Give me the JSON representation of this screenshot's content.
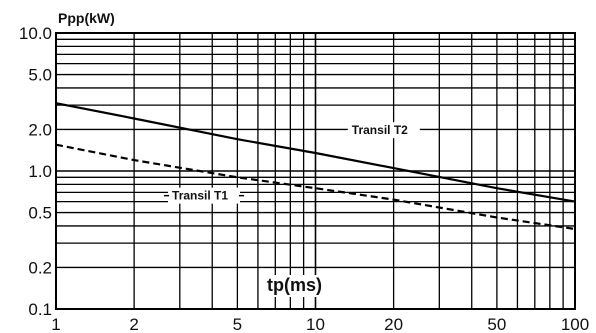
{
  "chart_data": {
    "type": "line",
    "title": "Ppp(kW)",
    "xlabel": "tp(ms)",
    "ylabel": "Ppp(kW)",
    "x_scale": "log",
    "y_scale": "log",
    "xlim": [
      1,
      100
    ],
    "ylim": [
      0.1,
      10
    ],
    "x_ticks": [
      1,
      2,
      5,
      10,
      20,
      50,
      100
    ],
    "x_tick_labels": [
      "1",
      "2",
      "5",
      "10",
      "20",
      "50",
      "100"
    ],
    "y_ticks": [
      0.1,
      0.2,
      0.5,
      1,
      2,
      5,
      10
    ],
    "y_tick_labels": [
      "0.1",
      "0.2",
      "0.5",
      "1.0",
      "2.0",
      "5.0",
      "10.0"
    ],
    "x_gridlines": [
      1,
      2,
      3,
      4,
      5,
      6,
      7,
      8,
      9,
      10,
      20,
      30,
      40,
      50,
      60,
      70,
      80,
      90,
      100
    ],
    "y_gridlines": [
      0.1,
      0.2,
      0.3,
      0.4,
      0.5,
      0.6,
      0.7,
      0.8,
      0.9,
      1,
      2,
      3,
      4,
      5,
      6,
      7,
      8,
      9,
      10
    ],
    "grid": true,
    "series": [
      {
        "name": "Transil T2",
        "line_style": "solid",
        "x": [
          1,
          2,
          5,
          10,
          20,
          50,
          100
        ],
        "y": [
          3.1,
          2.4,
          1.7,
          1.35,
          1.05,
          0.75,
          0.6
        ]
      },
      {
        "name": "Transil T1",
        "line_style": "dashed",
        "x": [
          1,
          2,
          5,
          10,
          20,
          50,
          100
        ],
        "y": [
          1.55,
          1.2,
          0.9,
          0.75,
          0.62,
          0.46,
          0.38
        ]
      }
    ]
  }
}
